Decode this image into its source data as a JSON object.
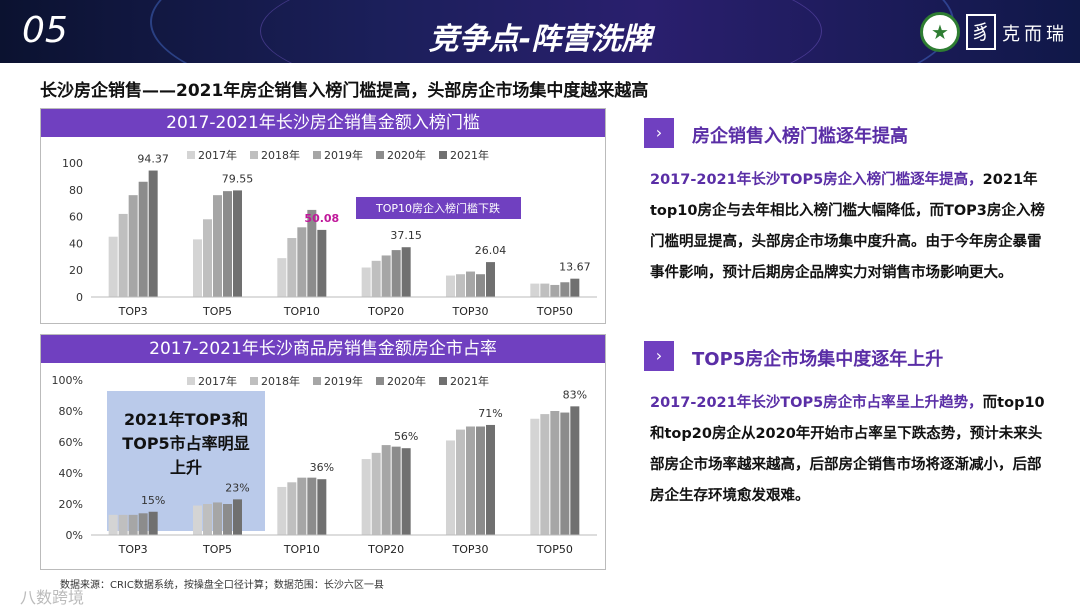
{
  "header": {
    "number": "05",
    "title": "竞争点-阵营洗牌",
    "brand": "克而瑞",
    "logo_icon": "star-emblem-icon",
    "logo2_icon": "seal-icon"
  },
  "subtitle": "长沙房企销售——2021年房企销售入榜门槛提高，头部房企市场集中度越来越高",
  "chart_data": [
    {
      "type": "bar",
      "title": "2017-2021年长沙房企销售金额入榜门槛",
      "categories": [
        "TOP3",
        "TOP5",
        "TOP10",
        "TOP20",
        "TOP30",
        "TOP50"
      ],
      "ylim": [
        0,
        100
      ],
      "yticks": [
        "0",
        "20",
        "40",
        "60",
        "80",
        "100"
      ],
      "series": [
        {
          "name": "2017年",
          "color": "#d4d4d4",
          "values": [
            45,
            43,
            29,
            22,
            16,
            10
          ]
        },
        {
          "name": "2018年",
          "color": "#bfbfbf",
          "values": [
            62,
            58,
            44,
            27,
            17,
            10
          ]
        },
        {
          "name": "2019年",
          "color": "#a6a6a6",
          "values": [
            76,
            76,
            52,
            31,
            19,
            9
          ]
        },
        {
          "name": "2020年",
          "color": "#8c8c8c",
          "values": [
            86,
            79,
            65,
            35,
            17,
            11
          ]
        },
        {
          "name": "2021年",
          "color": "#707070",
          "values": [
            94.37,
            79.55,
            50.08,
            37.15,
            26.04,
            13.67
          ]
        }
      ],
      "data_labels": [
        "94.37",
        "79.55",
        "50.08",
        "37.15",
        "26.04",
        "13.67"
      ],
      "annotation": "TOP10房企入榜门槛下跌"
    },
    {
      "type": "bar",
      "title": "2017-2021年长沙商品房销售金额房企市占率",
      "categories": [
        "TOP3",
        "TOP5",
        "TOP10",
        "TOP20",
        "TOP30",
        "TOP50"
      ],
      "ylim": [
        0,
        100
      ],
      "yticks": [
        "0%",
        "20%",
        "40%",
        "60%",
        "80%",
        "100%"
      ],
      "series": [
        {
          "name": "2017年",
          "color": "#d4d4d4",
          "values": [
            13,
            19,
            31,
            49,
            61,
            75
          ]
        },
        {
          "name": "2018年",
          "color": "#bfbfbf",
          "values": [
            13,
            20,
            34,
            53,
            68,
            78
          ]
        },
        {
          "name": "2019年",
          "color": "#a6a6a6",
          "values": [
            13,
            21,
            37,
            58,
            70,
            80
          ]
        },
        {
          "name": "2020年",
          "color": "#8c8c8c",
          "values": [
            14,
            20,
            37,
            57,
            70,
            79
          ]
        },
        {
          "name": "2021年",
          "color": "#707070",
          "values": [
            15,
            23,
            36,
            56,
            71,
            83
          ]
        }
      ],
      "data_labels": [
        "15%",
        "23%",
        "36%",
        "56%",
        "71%",
        "83%"
      ],
      "annotation": "2021年TOP3和TOP5市占率明显上升"
    }
  ],
  "right": {
    "sec1_title": "房企销售入榜门槛逐年提高",
    "sec1_lead": "2017-2021年长沙TOP5房企入榜门槛逐年提高，",
    "sec1_body": "2021年top10房企与去年相比入榜门槛大幅降低，而TOP3房企入榜门槛明显提高，头部房企市场集中度升高。由于今年房企暴雷事件影响，预计后期房企品牌实力对销售市场影响更大。",
    "sec2_title": "TOP5房企市场集中度逐年上升",
    "sec2_lead": "2017-2021年长沙TOP5房企市占率呈上升趋势，",
    "sec2_body": "而top10和top20房企从2020年开始市占率呈下跌态势，预计未来头部房企市场率越来越高，后部房企销售市场将逐渐减小，后部房企生存环境愈发艰难。"
  },
  "source": "数据来源：CRIC数据系统，按操盘全口径计算；数据范围：长沙六区一县",
  "watermark": "八数跨境",
  "accent": "#7040c0"
}
